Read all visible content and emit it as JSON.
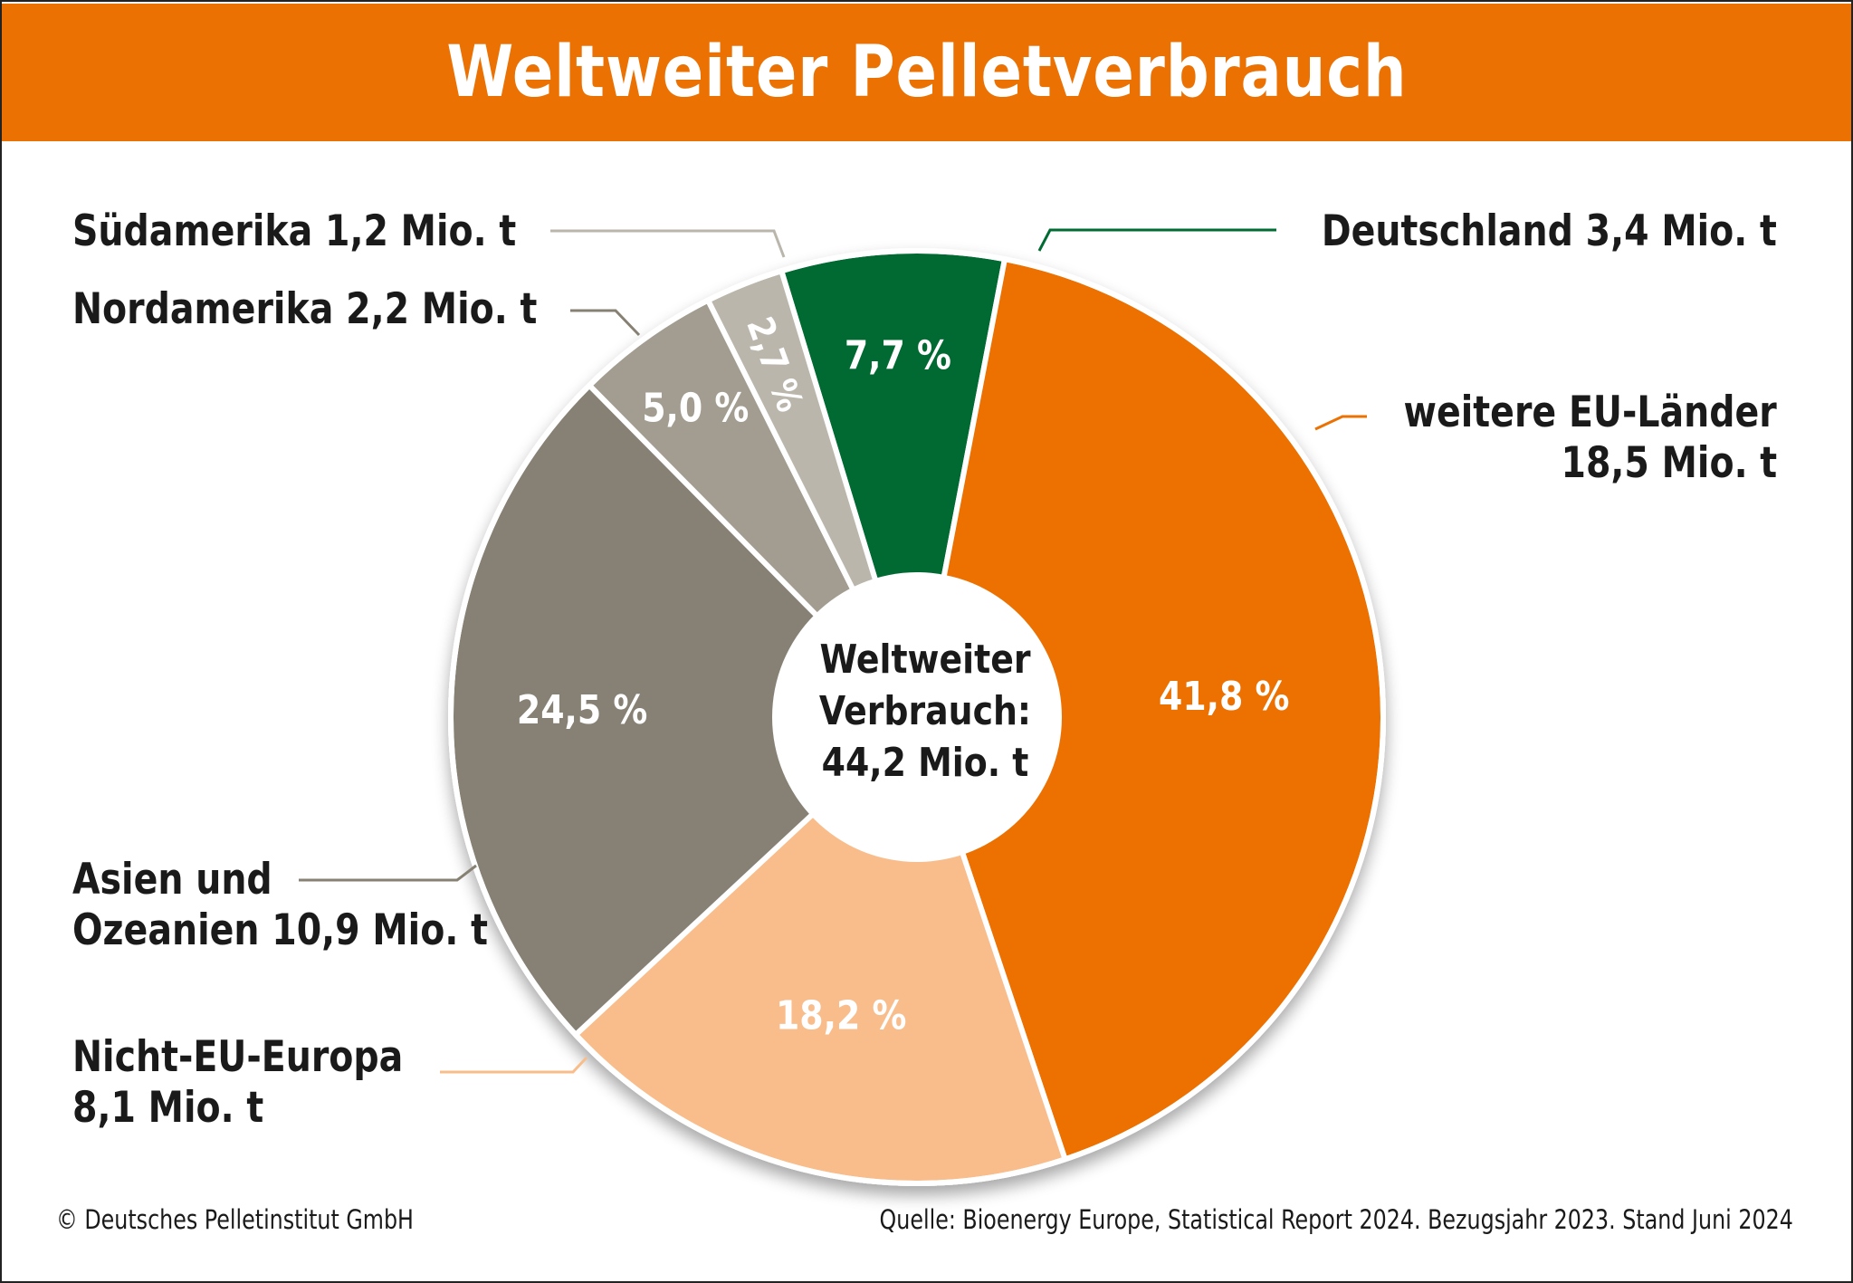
{
  "header": {
    "title": "Weltweiter Pelletverbrauch"
  },
  "center": {
    "line1": "Weltweiter",
    "line2": "Verbrauch:",
    "line3": "44,2 Mio. t"
  },
  "footer": {
    "copyright": "© Deutsches Pelletinstitut GmbH",
    "source": "Quelle: Bioenergy Europe, Statistical Report 2024. Bezugsjahr 2023. Stand Juni 2024"
  },
  "chart_data": {
    "type": "pie",
    "variant": "donut",
    "title": "Weltweiter Pelletverbrauch",
    "total": {
      "label": "Weltweiter Verbrauch",
      "value": 44.2,
      "unit": "Mio. t"
    },
    "slices": [
      {
        "name": "Deutschland",
        "value": 3.4,
        "percent": 7.7,
        "percent_label": "7,7 %",
        "label_line1": "Deutschland 3,4 Mio. t",
        "label_line2": "",
        "color": "#006b33"
      },
      {
        "name": "weitere EU-Länder",
        "value": 18.5,
        "percent": 41.8,
        "percent_label": "41,8 %",
        "label_line1": "weitere EU-Länder",
        "label_line2": "18,5 Mio. t",
        "color": "#ec7103"
      },
      {
        "name": "Nicht-EU-Europa",
        "value": 8.1,
        "percent": 18.2,
        "percent_label": "18,2 %",
        "label_line1": "Nicht-EU-Europa",
        "label_line2": "8,1 Mio. t",
        "color": "#f8bd8b"
      },
      {
        "name": "Asien und Ozeanien",
        "value": 10.9,
        "percent": 24.5,
        "percent_label": "24,5 %",
        "label_line1": "Asien und",
        "label_line2": "Ozeanien 10,9 Mio. t",
        "color": "#878174"
      },
      {
        "name": "Nordamerika",
        "value": 2.2,
        "percent": 5.0,
        "percent_label": "5,0 %",
        "label_line1": "Nordamerika 2,2 Mio. t",
        "label_line2": "",
        "color": "#a39d91"
      },
      {
        "name": "Südamerika",
        "value": 1.2,
        "percent": 2.7,
        "percent_label": "2,7 %",
        "label_line1": "Südamerika 1,2 Mio. t",
        "label_line2": "",
        "color": "#bab6ac"
      }
    ]
  }
}
